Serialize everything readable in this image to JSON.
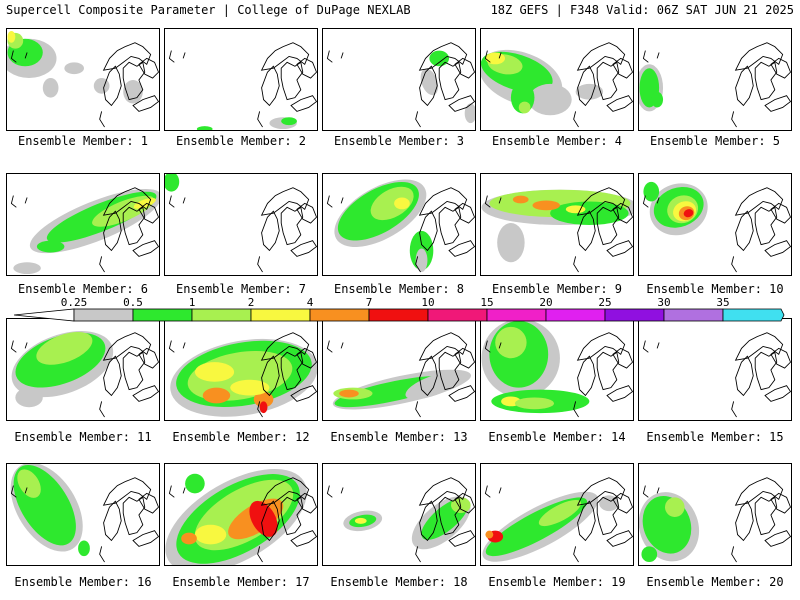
{
  "header": {
    "left": "Supercell Composite Parameter | College of DuPage NEXLAB",
    "right": "18Z GEFS | F348 Valid: 06Z SAT JUN 21 2025"
  },
  "colors": {
    "c0": "#c8c8c8",
    "c1": "#2ee82e",
    "c2": "#a8f050",
    "c3": "#f8f840",
    "c4": "#f89020",
    "c5": "#f01010",
    "c6": "#f01878",
    "c7": "#f020c8",
    "c8": "#e020f0",
    "c9": "#9010e0",
    "c10": "#b070e0",
    "c11": "#40e0f0"
  },
  "colorbar": {
    "ticks": [
      "0.25",
      "0.5",
      "1",
      "2",
      "4",
      "7",
      "10",
      "15",
      "20",
      "25",
      "30",
      "35"
    ]
  },
  "members": [
    {
      "label": "Ensemble Member: 1"
    },
    {
      "label": "Ensemble Member: 2"
    },
    {
      "label": "Ensemble Member: 3"
    },
    {
      "label": "Ensemble Member: 4"
    },
    {
      "label": "Ensemble Member: 5"
    },
    {
      "label": "Ensemble Member: 6"
    },
    {
      "label": "Ensemble Member: 7"
    },
    {
      "label": "Ensemble Member: 8"
    },
    {
      "label": "Ensemble Member: 9"
    },
    {
      "label": "Ensemble Member: 10"
    },
    {
      "label": "Ensemble Member: 11"
    },
    {
      "label": "Ensemble Member: 12"
    },
    {
      "label": "Ensemble Member: 13"
    },
    {
      "label": "Ensemble Member: 14"
    },
    {
      "label": "Ensemble Member: 15"
    },
    {
      "label": "Ensemble Member: 16"
    },
    {
      "label": "Ensemble Member: 17"
    },
    {
      "label": "Ensemble Member: 18"
    },
    {
      "label": "Ensemble Member: 19"
    },
    {
      "label": "Ensemble Member: 20"
    }
  ]
}
